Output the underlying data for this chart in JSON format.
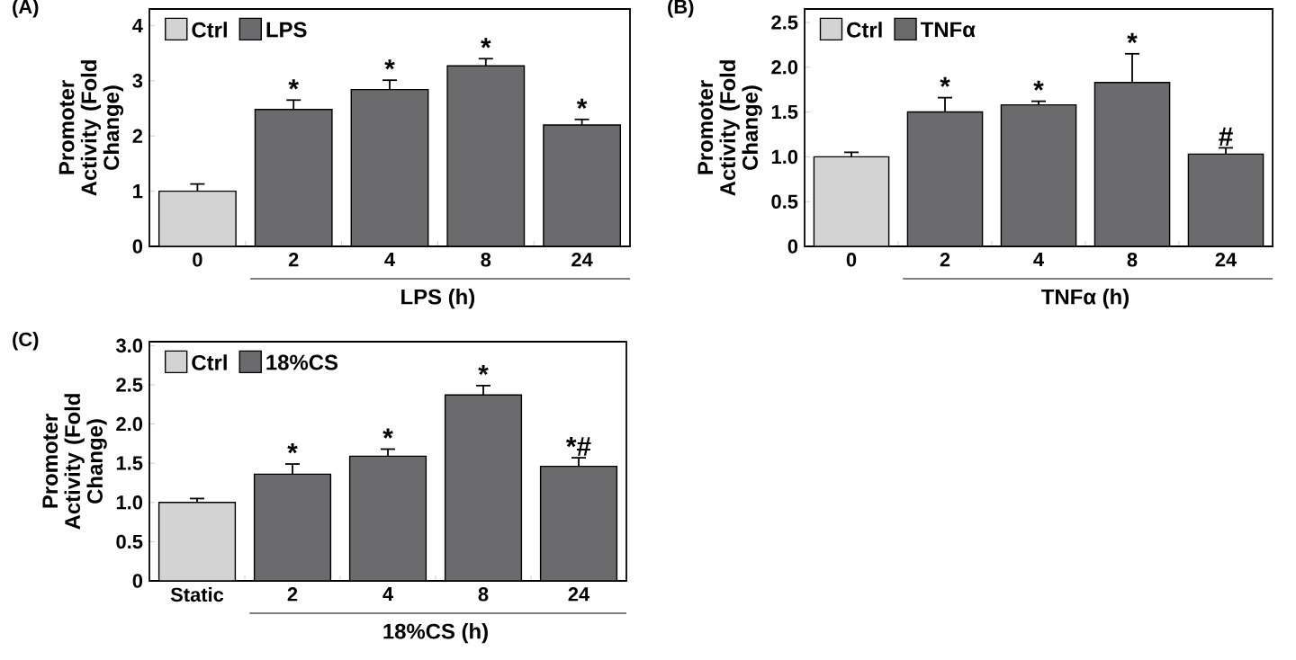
{
  "chart_data": [
    {
      "type": "bar",
      "title": "(A)",
      "xlabel": "LPS (h)",
      "ylabel": "Promoter Activity (Fold Change)",
      "categories": [
        "0",
        "2",
        "4",
        "8",
        "24"
      ],
      "series": [
        {
          "name": "Ctrl",
          "color": "#d3d3d3",
          "values": [
            1.0,
            null,
            null,
            null,
            null
          ],
          "errors": [
            0.13,
            null,
            null,
            null,
            null
          ]
        },
        {
          "name": "LPS",
          "color": "#6b6b6e",
          "values": [
            null,
            2.48,
            2.84,
            3.27,
            2.2
          ],
          "errors": [
            null,
            0.17,
            0.17,
            0.13,
            0.1
          ]
        }
      ],
      "ylim": [
        0,
        4.3
      ],
      "yticks": [
        0,
        1,
        2,
        3,
        4
      ],
      "legend": "top left",
      "annotations": [
        {
          "text": "*",
          "x": "2",
          "y": 2.65
        },
        {
          "text": "*",
          "x": "4",
          "y": 3.01
        },
        {
          "text": "*",
          "x": "8",
          "y": 3.4
        },
        {
          "text": "*",
          "x": "24",
          "y": 2.3
        }
      ]
    },
    {
      "type": "bar",
      "title": "(B)",
      "xlabel": "TNFα (h)",
      "ylabel": "Promoter Activity (Fold Change)",
      "categories": [
        "0",
        "2",
        "4",
        "8",
        "24"
      ],
      "series": [
        {
          "name": "Ctrl",
          "color": "#d3d3d3",
          "values": [
            1.0,
            null,
            null,
            null,
            null
          ],
          "errors": [
            0.05,
            null,
            null,
            null,
            null
          ]
        },
        {
          "name": "TNFα",
          "color": "#6b6b6e",
          "values": [
            null,
            1.5,
            1.58,
            1.83,
            1.03
          ],
          "errors": [
            null,
            0.16,
            0.04,
            0.32,
            0.07
          ]
        }
      ],
      "ylim": [
        0,
        2.65
      ],
      "yticks": [
        0,
        0.5,
        {
          "value": 1,
          "label": "1.0"
        },
        1.5,
        {
          "value": 2,
          "label": "2.0"
        },
        2.5
      ],
      "legend": "top left",
      "annotations": [
        {
          "text": "*",
          "x": "2",
          "y": 1.66
        },
        {
          "text": "*",
          "x": "4",
          "y": 1.62
        },
        {
          "text": "*",
          "x": "8",
          "y": 2.15
        },
        {
          "text": "#",
          "x": "24",
          "y": 1.1
        }
      ]
    },
    {
      "type": "bar",
      "title": "(C)",
      "xlabel": "18%CS (h)",
      "ylabel": "Promoter Activity (Fold Change)",
      "categories": [
        "Static",
        "2",
        "4",
        "8",
        "24"
      ],
      "series": [
        {
          "name": "Ctrl",
          "color": "#d3d3d3",
          "values": [
            1.0,
            null,
            null,
            null,
            null
          ],
          "errors": [
            0.05,
            null,
            null,
            null,
            null
          ]
        },
        {
          "name": "18%CS",
          "color": "#6b6b6e",
          "values": [
            null,
            1.36,
            1.59,
            2.37,
            1.46
          ],
          "errors": [
            null,
            0.13,
            0.09,
            0.12,
            0.11
          ]
        }
      ],
      "ylim": [
        0,
        3.05
      ],
      "yticks": [
        0,
        0.5,
        {
          "value": 1,
          "label": "1.0"
        },
        1.5,
        {
          "value": 2,
          "label": "2.0"
        },
        2.5,
        {
          "value": 3,
          "label": "3.0"
        }
      ],
      "legend": "top left",
      "annotations": [
        {
          "text": "*",
          "x": "2",
          "y": 1.49
        },
        {
          "text": "*",
          "x": "4",
          "y": 1.68
        },
        {
          "text": "*",
          "x": "8",
          "y": 2.49
        },
        {
          "text": "*#",
          "x": "24",
          "y": 1.57
        }
      ]
    }
  ]
}
